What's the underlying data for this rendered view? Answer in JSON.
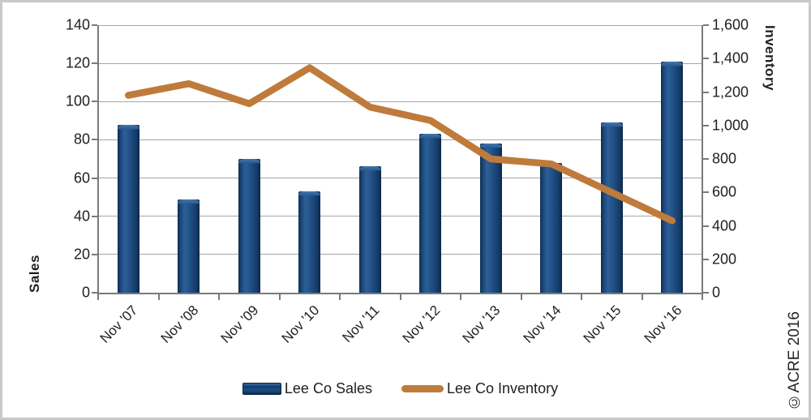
{
  "annotations": {
    "copyright": "©ACRE 2016"
  },
  "colors": {
    "bar_fill": "#1b4575",
    "line_stroke": "#be7b3b",
    "gridline": "#a6a6a6",
    "axis_line": "#7a7a7a",
    "text": "#1f1f1f",
    "frame_border": "#c9c9c9",
    "background": "#ffffff"
  },
  "chart_data": {
    "type": "bar",
    "subtype": "combo-bar-line",
    "categories": [
      "Nov '07",
      "Nov '08",
      "Nov '09",
      "Nov '10",
      "Nov '11",
      "Nov '12",
      "Nov '13",
      "Nov '14",
      "Nov '15",
      "Nov '16"
    ],
    "series": [
      {
        "name": "Lee Co Sales",
        "type": "bar",
        "axis": "left",
        "color": "#1b4575",
        "values": [
          88,
          49,
          70,
          53,
          66,
          83,
          78,
          68,
          89,
          121
        ]
      },
      {
        "name": "Lee Co Inventory",
        "type": "line",
        "axis": "right",
        "color": "#be7b3b",
        "values": [
          1180,
          1250,
          1130,
          1345,
          1110,
          1030,
          800,
          770,
          600,
          430
        ]
      }
    ],
    "left_axis": {
      "title": "Sales",
      "min": 0,
      "max": 140,
      "step": 20,
      "tick_labels": [
        "0",
        "20",
        "40",
        "60",
        "80",
        "100",
        "120",
        "140"
      ]
    },
    "right_axis": {
      "title": "Inventory",
      "min": 0,
      "max": 1600,
      "step": 200,
      "tick_labels": [
        "0",
        "200",
        "400",
        "600",
        "800",
        "1,000",
        "1,200",
        "1,400",
        "1,600"
      ]
    },
    "grid": "horizontal",
    "legend_position": "bottom"
  }
}
